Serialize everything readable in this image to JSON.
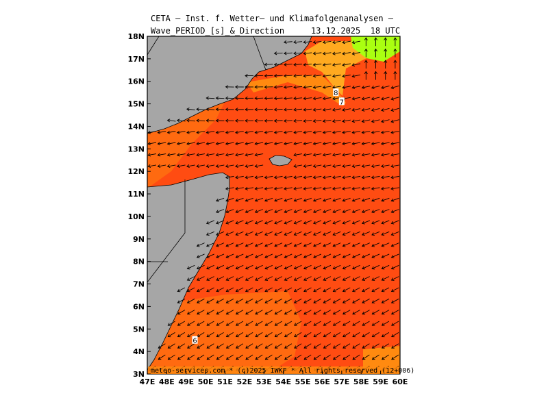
{
  "header": {
    "line1": "CETA – Inst. f. Wetter– und Klimafolgenanalysen –",
    "line2": "Wave_PERIOD_[s]_&_Direction",
    "datetime": "13.12.2025  18 UTC"
  },
  "footer": {
    "credit": "meteo-services.com * (c)2025 IWKF * All rights reserved (12+006)"
  },
  "axes": {
    "lon_labels": [
      "47E",
      "48E",
      "49E",
      "50E",
      "51E",
      "52E",
      "53E",
      "54E",
      "55E",
      "56E",
      "57E",
      "58E",
      "59E",
      "60E"
    ],
    "lat_labels": [
      "3N",
      "4N",
      "5N",
      "6N",
      "7N",
      "8N",
      "9N",
      "10N",
      "11N",
      "12N",
      "13N",
      "14N",
      "15N",
      "16N",
      "17N",
      "18N"
    ]
  },
  "contour_labels": [
    {
      "text": "8",
      "lon": 56.7,
      "lat": 15.5
    },
    {
      "text": "7",
      "lon": 57.0,
      "lat": 15.1
    },
    {
      "text": "6",
      "lon": 49.45,
      "lat": 4.5
    }
  ],
  "colors": {
    "land": "#a6a6a6",
    "period_5_6": "#ff6a10",
    "period_6_7": "#ff4c12",
    "period_7_8": "#ff8a10",
    "period_8_9": "#ffaa20",
    "period_9_10": "#ffcc33",
    "period_high": "#aaff11",
    "arrow": "#000000"
  },
  "wave_direction_note": "arrows show mean wave direction"
}
